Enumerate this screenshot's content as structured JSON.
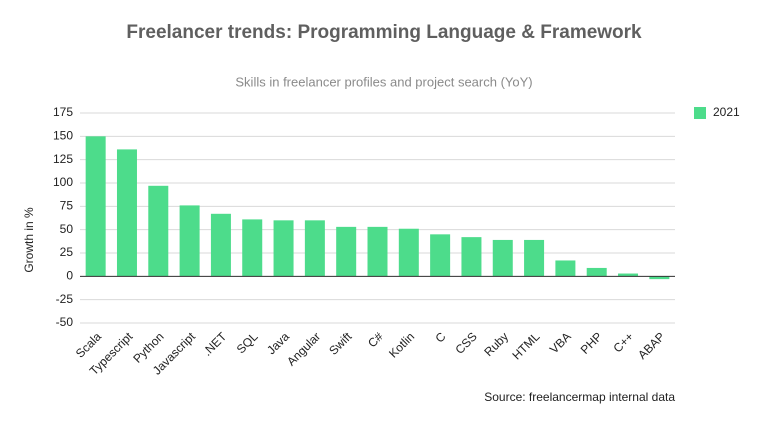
{
  "chart_data": {
    "type": "bar",
    "title": "Freelancer trends: Programming Language & Framework",
    "subtitle": "Skills in freelancer profiles and project search (YoY)",
    "y_label": "Growth in %",
    "source": "Source: freelancermap internal data",
    "categories": [
      "Scala",
      "Typescript",
      "Python",
      "Javascript",
      ".NET",
      "SQL",
      "Java",
      "Angular",
      "Swift",
      "C#",
      "Kotlin",
      "C",
      "CSS",
      "Ruby",
      "HTML",
      "VBA",
      "PHP",
      "C++",
      "ABAP"
    ],
    "series": [
      {
        "name": "2021",
        "color": "#4ddc8b",
        "values": [
          150,
          136,
          97,
          76,
          67,
          61,
          60,
          60,
          53,
          53,
          51,
          45,
          42,
          39,
          39,
          17,
          9,
          3,
          -3
        ]
      }
    ],
    "ylim": [
      -50,
      175
    ],
    "yticks": [
      -50,
      -25,
      0,
      25,
      50,
      75,
      100,
      125,
      150,
      175
    ],
    "grid": true,
    "legend": "right"
  }
}
